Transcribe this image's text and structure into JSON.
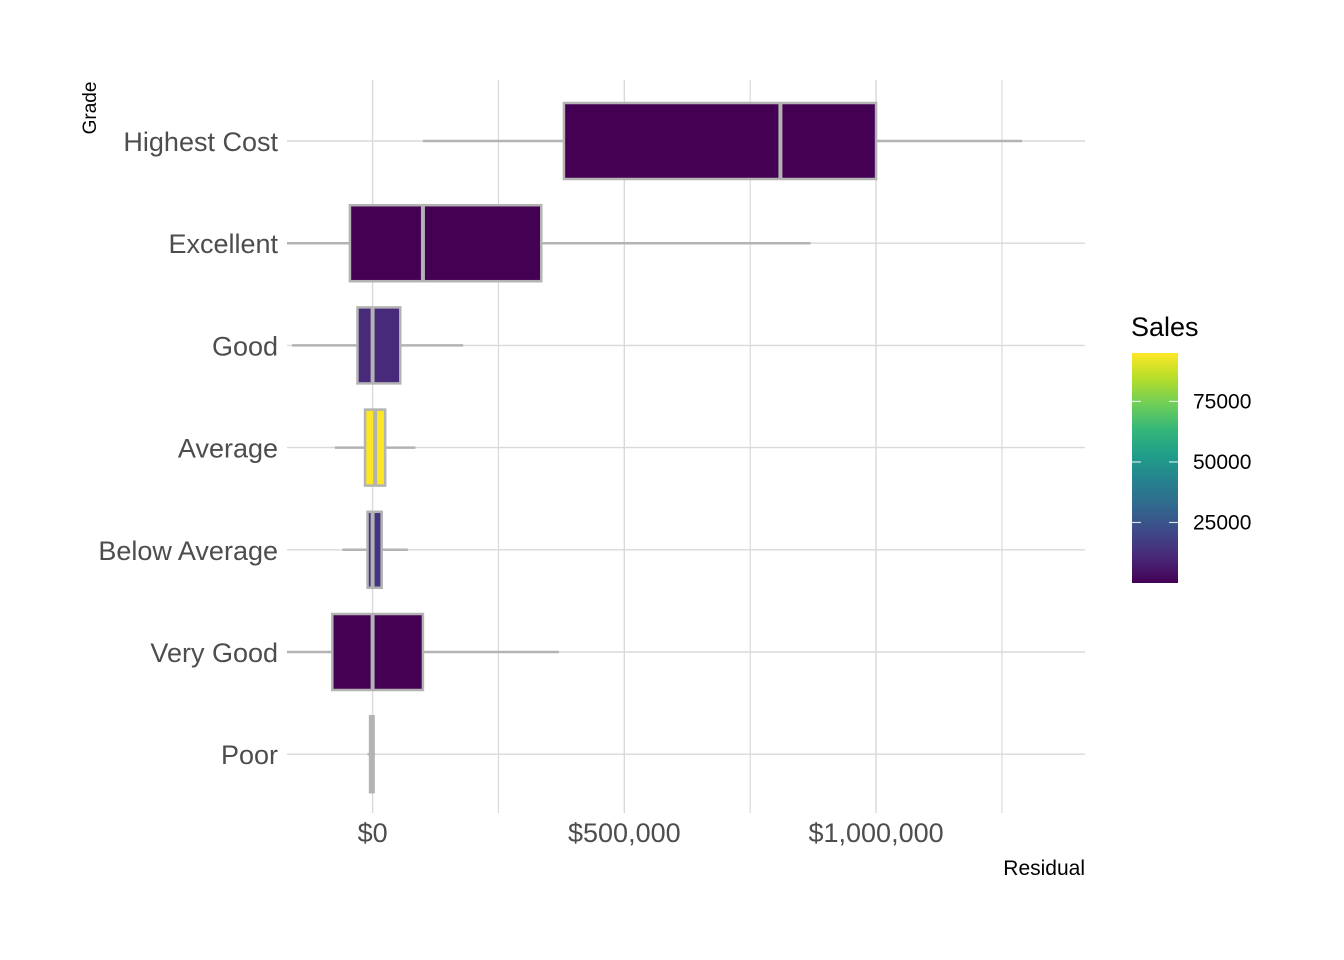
{
  "chart_data": {
    "type": "boxplot",
    "orientation": "horizontal",
    "title": "",
    "xlabel": "Residual",
    "ylabel": "Grade",
    "xlim": [
      -170000,
      1415000
    ],
    "x_ticks": [
      {
        "value": 0,
        "label": "$0"
      },
      {
        "value": 500000,
        "label": "$500,000"
      },
      {
        "value": 1000000,
        "label": "$1,000,000"
      }
    ],
    "x_minor_gridlines": [
      250000,
      750000,
      1250000
    ],
    "grid": true,
    "categories": [
      "Highest Cost",
      "Excellent",
      "Good",
      "Average",
      "Below Average",
      "Very Good",
      "Poor"
    ],
    "boxes": [
      {
        "category": "Highest Cost",
        "whisker_low": 100000,
        "q1": 380000,
        "median": 810000,
        "q3": 1000000,
        "whisker_high": 1290000,
        "sales": 10,
        "fill": "#440154"
      },
      {
        "category": "Excellent",
        "whisker_low": -170000,
        "q1": -45000,
        "median": 100000,
        "q3": 335000,
        "whisker_high": 870000,
        "sales": 600,
        "fill": "#440154"
      },
      {
        "category": "Good",
        "whisker_low": -160000,
        "q1": -30000,
        "median": 0,
        "q3": 55000,
        "whisker_high": 180000,
        "sales": 12000,
        "fill": "#472a7a"
      },
      {
        "category": "Average",
        "whisker_low": -75000,
        "q1": -15000,
        "median": 5000,
        "q3": 25000,
        "whisker_high": 85000,
        "sales": 90000,
        "fill": "#fde725"
      },
      {
        "category": "Below Average",
        "whisker_low": -60000,
        "q1": -10000,
        "median": 0,
        "q3": 18000,
        "whisker_high": 70000,
        "sales": 12000,
        "fill": "#46327e"
      },
      {
        "category": "Very Good",
        "whisker_low": -170000,
        "q1": -80000,
        "median": 0,
        "q3": 100000,
        "whisker_high": 370000,
        "sales": 100,
        "fill": "#440154"
      },
      {
        "category": "Poor",
        "whisker_low": -10000,
        "q1": -5000,
        "median": -2000,
        "q3": 2000,
        "whisker_high": 5000,
        "sales": 5,
        "fill": "#b3b3b3"
      }
    ],
    "legend": {
      "title": "Sales",
      "type": "colorbar",
      "placement": "right",
      "min": 0,
      "max": 95000,
      "breaks": [
        {
          "value": 25000,
          "label": "25000"
        },
        {
          "value": 50000,
          "label": "50000"
        },
        {
          "value": 75000,
          "label": "75000"
        }
      ],
      "colors": [
        "#440154",
        "#482878",
        "#3e4989",
        "#31688e",
        "#26828e",
        "#1f9e89",
        "#35b779",
        "#6ece58",
        "#b5de2b",
        "#fde725"
      ]
    },
    "box_outline_color": "#b3b3b3",
    "grid_color": "#d9d9d9"
  }
}
